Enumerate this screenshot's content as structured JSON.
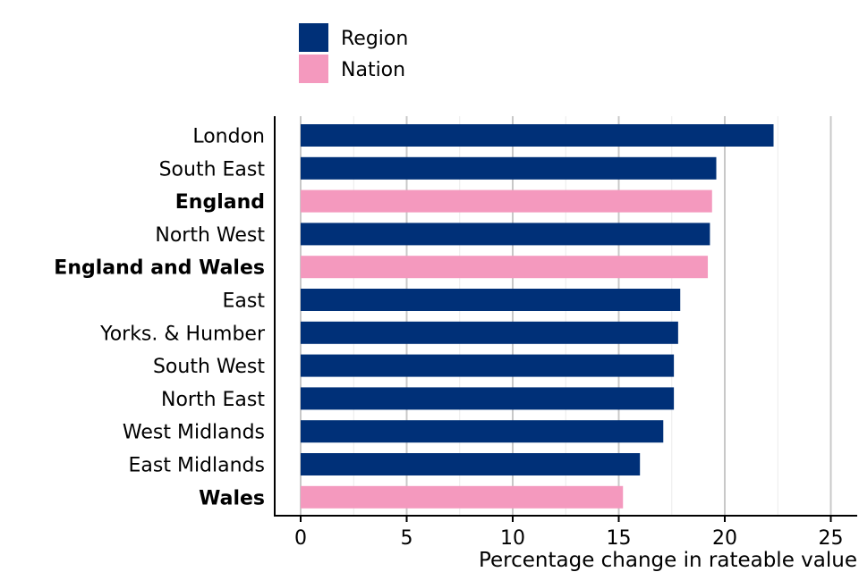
{
  "chart_data": {
    "type": "bar",
    "orientation": "horizontal",
    "categories": [
      "London",
      "South East",
      "England",
      "North West",
      "England and Wales",
      "East",
      "Yorks. & Humber",
      "South West",
      "North East",
      "West Midlands",
      "East Midlands",
      "Wales"
    ],
    "values": [
      22.3,
      19.6,
      19.4,
      19.3,
      19.2,
      17.9,
      17.8,
      17.6,
      17.6,
      17.1,
      16.0,
      15.2
    ],
    "groups": [
      "Region",
      "Region",
      "Nation",
      "Region",
      "Nation",
      "Region",
      "Region",
      "Region",
      "Region",
      "Region",
      "Region",
      "Nation"
    ],
    "legend": [
      {
        "name": "Region",
        "color": "#003078"
      },
      {
        "name": "Nation",
        "color": "#F499BE"
      }
    ],
    "legend_position": "top",
    "xlabel": "Percentage change in rateable value",
    "ylabel": "",
    "xlim": [
      -1.2,
      26.2
    ],
    "xticks": [
      0,
      5,
      10,
      15,
      20,
      25
    ],
    "grid": true
  }
}
